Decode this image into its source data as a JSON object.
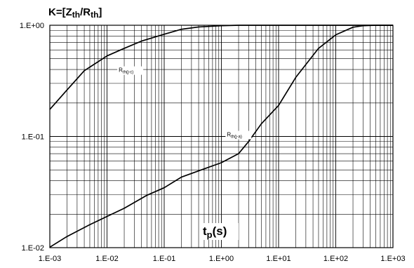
{
  "chart_data": {
    "type": "line",
    "title": "K=[Zth/Rth]",
    "title_parts": {
      "base": "K=[Z",
      "sub1": "th",
      "mid": "/R",
      "sub2": "th",
      "end": "]"
    },
    "xlabel": "tp(s)",
    "xlabel_parts": {
      "base": "t",
      "sub": "p",
      "end": "(s)"
    },
    "ylabel": "",
    "x_scale": "log",
    "y_scale": "log",
    "xlim": [
      0.001,
      1000
    ],
    "ylim": [
      0.01,
      1
    ],
    "grid": true,
    "x_ticks": [
      {
        "value": 0.001,
        "label": "1.E-03"
      },
      {
        "value": 0.01,
        "label": "1.E-02"
      },
      {
        "value": 0.1,
        "label": "1.E-01"
      },
      {
        "value": 1,
        "label": "1.E+00"
      },
      {
        "value": 10,
        "label": "1.E+01"
      },
      {
        "value": 100,
        "label": "1.E+02"
      },
      {
        "value": 1000,
        "label": "1.E+03"
      }
    ],
    "y_ticks": [
      {
        "value": 1,
        "label": "1.E+00"
      },
      {
        "value": 0.1,
        "label": "1.E-01"
      },
      {
        "value": 0.01,
        "label": "1.E-02"
      }
    ],
    "series": [
      {
        "name": "Rth(j-c)",
        "label_parts": {
          "base": "R",
          "sub": "th(j-c)"
        },
        "label_at": {
          "x": 0.016,
          "y": 0.38
        },
        "x": [
          0.001,
          0.002,
          0.004,
          0.01,
          0.02,
          0.04,
          0.1,
          0.2,
          0.4,
          1,
          2,
          10,
          1000
        ],
        "y": [
          0.175,
          0.262,
          0.39,
          0.53,
          0.62,
          0.72,
          0.83,
          0.92,
          0.965,
          0.99,
          1.0,
          1.0,
          1.0
        ]
      },
      {
        "name": "Rth(j-a)",
        "label_parts": {
          "base": "R",
          "sub": "th(j-a)"
        },
        "label_at": {
          "x": 1.25,
          "y": 0.1
        },
        "x": [
          0.001,
          0.002,
          0.005,
          0.01,
          0.02,
          0.05,
          0.1,
          0.2,
          0.5,
          1,
          2,
          3,
          5,
          10,
          20,
          50,
          100,
          200,
          300,
          500,
          1000
        ],
        "y": [
          0.0101,
          0.0126,
          0.0161,
          0.0191,
          0.0226,
          0.0296,
          0.0346,
          0.0431,
          0.0511,
          0.0581,
          0.0701,
          0.0901,
          0.13,
          0.19,
          0.34,
          0.62,
          0.82,
          0.96,
          0.99,
          1.0,
          1.0
        ]
      }
    ]
  }
}
